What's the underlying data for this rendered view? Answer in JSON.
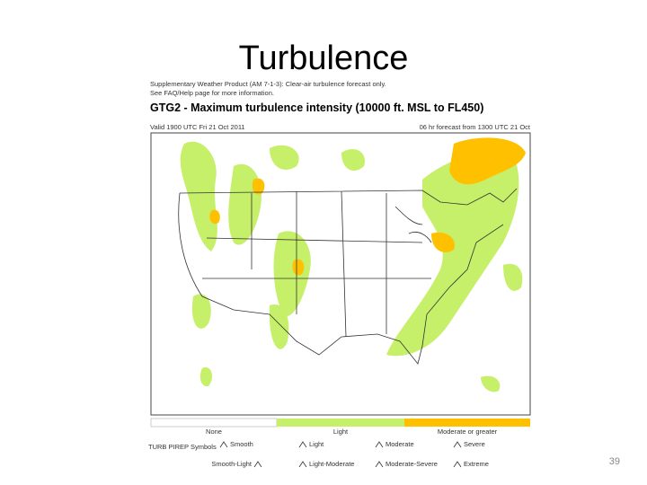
{
  "slide": {
    "title": "Turbulence",
    "page_number": "39",
    "figure": {
      "header_lines": [
        "Supplementary Weather Product (AM 7-1-3): Clear-air turbulence forecast only.",
        "See FAQ/Help page for more information."
      ],
      "map_title": "GTG2 - Maximum turbulence intensity (10000 ft. MSL to FL450)",
      "valid_time": "Valid 1900 UTC Fri 21 Oct 2011",
      "forecast_time": "06 hr forecast from 1300 UTC 21 Oct",
      "legend": [
        "None",
        "Light",
        "Moderate or greater"
      ],
      "pirep_label": "TURB PIREP Symbols",
      "pirep_symbols": [
        "Smooth",
        "Light",
        "Moderate",
        "Severe",
        "Smooth-Light",
        "Light-Moderate",
        "Moderate-Severe",
        "Extreme"
      ]
    }
  }
}
